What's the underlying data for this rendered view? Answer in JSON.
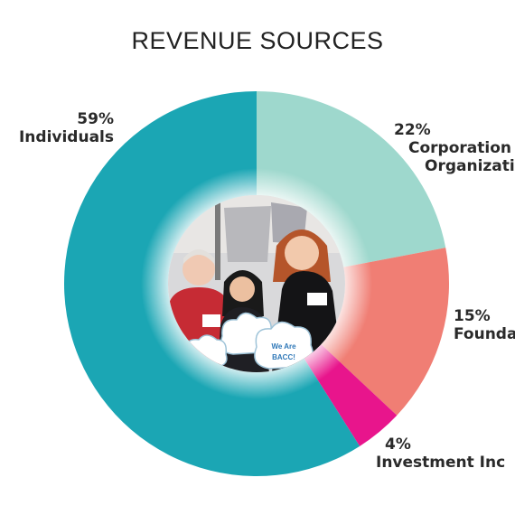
{
  "chart_data": {
    "type": "pie",
    "title": "REVENUE SOURCES",
    "donut": true,
    "slices": [
      {
        "label": "Corporations & Organizations",
        "display_label": "Corporation",
        "display_label_line2": "Organizati",
        "value": 22,
        "pct_label": "22%",
        "color": "#9ed8cd"
      },
      {
        "label": "Foundations",
        "display_label": "Founda",
        "value": 15,
        "pct_label": "15%",
        "color": "#f07e74"
      },
      {
        "label": "Investment Income",
        "display_label": "Investment Inc",
        "value": 4,
        "pct_label": "4%",
        "color": "#e8158c"
      },
      {
        "label": "Individuals",
        "display_label": "Individuals",
        "value": 59,
        "pct_label": "59%",
        "color": "#1ba6b4"
      }
    ],
    "center_photo": {
      "cloud_sign_1": "We Are",
      "cloud_sign_2": "BACC!"
    }
  }
}
